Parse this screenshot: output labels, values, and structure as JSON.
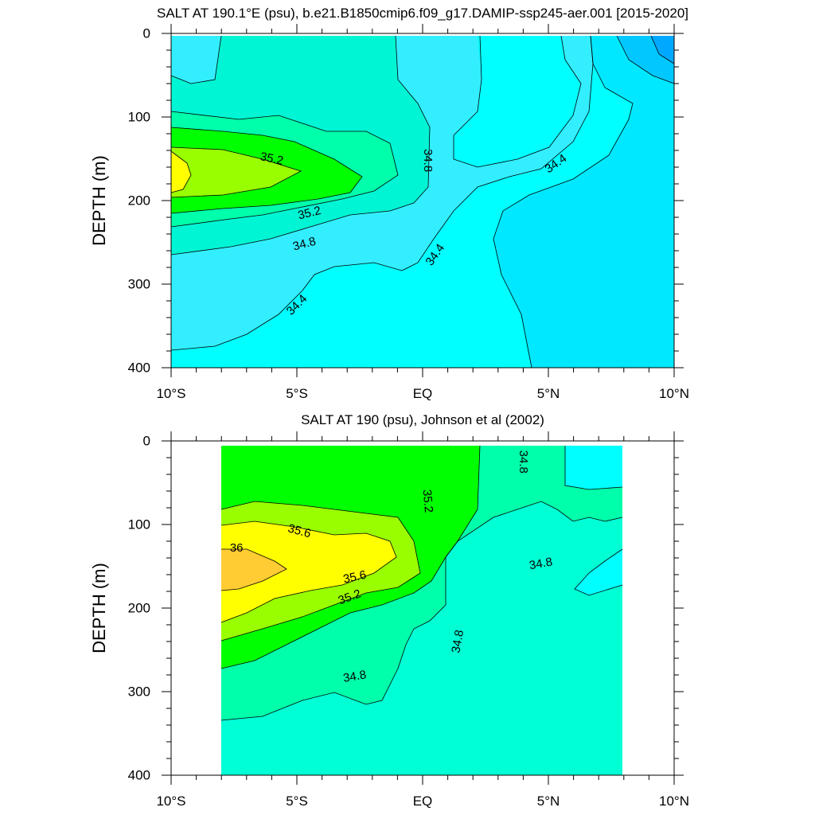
{
  "chart_data": [
    {
      "type": "heatmap",
      "subtype": "filled-contour",
      "title": "SALT AT 190.1°E (psu), b.e21.B1850cmip6.f09_g17.DAMIP-ssp245-aer.001 [2015-2020]",
      "xlabel": "",
      "ylabel": "DEPTH (m)",
      "xlim": [
        -10,
        10
      ],
      "ylim": [
        400,
        0
      ],
      "y_inverted": true,
      "x_ticks": [
        {
          "value": -10,
          "label": "10°S"
        },
        {
          "value": -5,
          "label": "5°S"
        },
        {
          "value": 0,
          "label": "EQ"
        },
        {
          "value": 5,
          "label": "5°N"
        },
        {
          "value": 10,
          "label": "10°N"
        }
      ],
      "y_ticks": [
        0,
        100,
        200,
        300,
        400
      ],
      "contour_labels": [
        {
          "text": "35.2",
          "x": -6.0,
          "y": 150
        },
        {
          "text": "35.2",
          "x": -4.5,
          "y": 215
        },
        {
          "text": "34.8",
          "x": -4.7,
          "y": 252
        },
        {
          "text": "34.4",
          "x": -5.0,
          "y": 325
        },
        {
          "text": "34.8",
          "x": 0.2,
          "y": 152
        },
        {
          "text": "34.4",
          "x": 0.5,
          "y": 265
        },
        {
          "text": "34.4",
          "x": 5.3,
          "y": 156
        }
      ],
      "salinity_range": [
        34.0,
        35.6
      ],
      "data_extent": {
        "x": [
          -10,
          10
        ],
        "y": [
          0,
          400
        ]
      }
    },
    {
      "type": "heatmap",
      "subtype": "filled-contour",
      "title": "SALT AT 190 (psu), Johnson et al (2002)",
      "xlabel": "",
      "ylabel": "DEPTH (m)",
      "xlim": [
        -10,
        10
      ],
      "ylim": [
        400,
        0
      ],
      "y_inverted": true,
      "x_ticks": [
        {
          "value": -10,
          "label": "10°S"
        },
        {
          "value": -5,
          "label": "5°S"
        },
        {
          "value": 0,
          "label": "EQ"
        },
        {
          "value": 5,
          "label": "5°N"
        },
        {
          "value": 10,
          "label": "10°N"
        }
      ],
      "y_ticks": [
        0,
        100,
        200,
        300,
        400
      ],
      "contour_labels": [
        {
          "text": "34.8",
          "x": 4.0,
          "y": 25
        },
        {
          "text": "35.2",
          "x": 0.2,
          "y": 72
        },
        {
          "text": "35.6",
          "x": -4.9,
          "y": 108
        },
        {
          "text": "36",
          "x": -7.4,
          "y": 128
        },
        {
          "text": "35.6",
          "x": -2.7,
          "y": 163
        },
        {
          "text": "35.2",
          "x": -2.9,
          "y": 187
        },
        {
          "text": "34.8",
          "x": 4.7,
          "y": 147
        },
        {
          "text": "34.8",
          "x": 1.4,
          "y": 240
        },
        {
          "text": "34.8",
          "x": -2.7,
          "y": 282
        }
      ],
      "salinity_range": [
        34.4,
        36.0
      ],
      "data_extent": {
        "x": [
          -8,
          8
        ],
        "y": [
          0,
          400
        ]
      }
    }
  ]
}
